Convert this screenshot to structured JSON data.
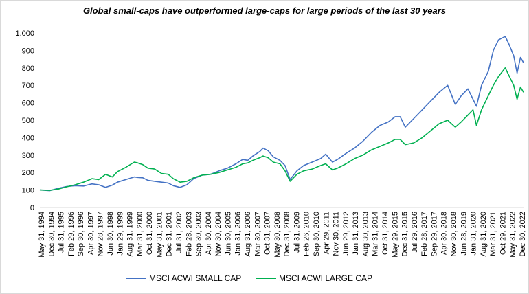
{
  "chart_data": {
    "type": "line",
    "title": "Global small-caps  have outperformed  large-caps  for large periods  of the last 30 years",
    "xlabel": "",
    "ylabel": "",
    "ylim": [
      0,
      1000
    ],
    "yticks": [
      0,
      100,
      200,
      300,
      400,
      500,
      600,
      700,
      800,
      900,
      1000
    ],
    "ytick_labels": [
      "0",
      "100",
      "200",
      "300",
      "400",
      "500",
      "600",
      "700",
      "800",
      "900",
      "1.000"
    ],
    "xtick_labels": [
      "May 31, 1994",
      "Dec 30, 1994",
      "Jul 31, 1995",
      "Feb 29, 1996",
      "Sep 30, 1996",
      "Apr 30, 1997",
      "Nov 28, 1997",
      "Jun 30, 1998",
      "Jan 29, 1999",
      "Aug 31, 1999",
      "Mar 31, 2000",
      "Oct 31, 2000",
      "May 31, 2001",
      "Dec 31, 2001",
      "Jul 31, 2002",
      "Feb 28, 2003",
      "Sep 30, 2003",
      "Apr 30, 2004",
      "Nov 30, 2004",
      "Jun 30, 2005",
      "Jan 31, 2006",
      "Aug 31, 2006",
      "Mar 30, 2007",
      "Oct 31, 2007",
      "May 30, 2008",
      "Dec 31, 2008",
      "Jul 31, 2009",
      "Feb 26, 2010",
      "Sep 30, 2010",
      "Apr 29, 2011",
      "Nov 30, 2011",
      "Jun 29, 2012",
      "Jan 31, 2013",
      "Aug 30, 2013",
      "Mar 31, 2014",
      "Oct 31, 2014",
      "May 29, 2015",
      "Dec 31, 2015",
      "Jul 29, 2016",
      "Feb 28, 2017",
      "Sep 29, 2017",
      "Apr 30, 2018",
      "Nov 30, 2018",
      "Jun 28, 2019",
      "Jan 31, 2020",
      "Aug 31, 2020",
      "Mar 31, 2021",
      "Oct 29, 2021",
      "May 31, 2022",
      "Dec 30, 2022"
    ],
    "x_range": [
      1994.42,
      2022.98
    ],
    "grid": false,
    "legend_position": "bottom",
    "series": [
      {
        "name": "MSCI ACWI SMALL CAP",
        "color": "#4472c4",
        "x": [
          1994.42,
          1995.0,
          1995.5,
          1996.0,
          1996.5,
          1997.0,
          1997.5,
          1997.9,
          1998.3,
          1998.7,
          1999.0,
          1999.5,
          2000.0,
          2000.2,
          2000.5,
          2000.8,
          2001.2,
          2001.6,
          2002.0,
          2002.3,
          2002.7,
          2003.1,
          2003.5,
          2004.0,
          2004.5,
          2005.0,
          2005.5,
          2006.0,
          2006.4,
          2006.7,
          2007.0,
          2007.4,
          2007.6,
          2007.9,
          2008.2,
          2008.6,
          2008.9,
          2009.2,
          2009.6,
          2010.0,
          2010.5,
          2011.0,
          2011.3,
          2011.7,
          2012.0,
          2012.5,
          2013.0,
          2013.5,
          2014.0,
          2014.5,
          2015.0,
          2015.4,
          2015.7,
          2016.0,
          2016.5,
          2017.0,
          2017.5,
          2018.0,
          2018.5,
          2018.95,
          2019.3,
          2019.7,
          2020.0,
          2020.2,
          2020.5,
          2020.9,
          2021.2,
          2021.5,
          2021.9,
          2022.1,
          2022.4,
          2022.6,
          2022.8,
          2022.98
        ],
        "values": [
          100,
          96,
          110,
          120,
          125,
          123,
          135,
          130,
          115,
          128,
          145,
          160,
          175,
          172,
          170,
          155,
          150,
          145,
          140,
          125,
          115,
          130,
          165,
          185,
          190,
          210,
          225,
          250,
          275,
          270,
          295,
          320,
          340,
          325,
          290,
          270,
          240,
          160,
          210,
          240,
          260,
          280,
          305,
          260,
          275,
          310,
          340,
          380,
          430,
          470,
          490,
          520,
          520,
          460,
          510,
          560,
          610,
          660,
          700,
          590,
          640,
          680,
          620,
          580,
          700,
          780,
          900,
          960,
          980,
          940,
          870,
          770,
          860,
          830
        ]
      },
      {
        "name": "MSCI ACWI LARGE CAP",
        "color": "#00b050",
        "x": [
          1994.42,
          1995.0,
          1995.5,
          1996.0,
          1996.5,
          1997.0,
          1997.5,
          1997.9,
          1998.3,
          1998.7,
          1999.0,
          1999.5,
          2000.0,
          2000.2,
          2000.5,
          2000.8,
          2001.2,
          2001.6,
          2002.0,
          2002.3,
          2002.7,
          2003.1,
          2003.5,
          2004.0,
          2004.5,
          2005.0,
          2005.5,
          2006.0,
          2006.4,
          2006.7,
          2007.0,
          2007.4,
          2007.6,
          2007.9,
          2008.2,
          2008.6,
          2008.9,
          2009.2,
          2009.6,
          2010.0,
          2010.5,
          2011.0,
          2011.3,
          2011.7,
          2012.0,
          2012.5,
          2013.0,
          2013.5,
          2014.0,
          2014.5,
          2015.0,
          2015.4,
          2015.7,
          2016.0,
          2016.5,
          2017.0,
          2017.5,
          2018.0,
          2018.5,
          2018.95,
          2019.3,
          2019.7,
          2020.0,
          2020.2,
          2020.5,
          2020.9,
          2021.2,
          2021.5,
          2021.9,
          2022.1,
          2022.4,
          2022.6,
          2022.8,
          2022.98
        ],
        "values": [
          100,
          98,
          105,
          118,
          130,
          145,
          165,
          160,
          190,
          175,
          205,
          230,
          260,
          255,
          245,
          225,
          220,
          195,
          190,
          165,
          145,
          150,
          170,
          185,
          190,
          200,
          215,
          230,
          250,
          255,
          270,
          285,
          295,
          285,
          260,
          250,
          210,
          150,
          190,
          210,
          220,
          240,
          250,
          215,
          225,
          250,
          280,
          300,
          330,
          350,
          370,
          390,
          390,
          360,
          370,
          400,
          440,
          480,
          500,
          460,
          490,
          530,
          560,
          470,
          560,
          640,
          700,
          750,
          800,
          760,
          700,
          620,
          690,
          660
        ]
      }
    ]
  }
}
